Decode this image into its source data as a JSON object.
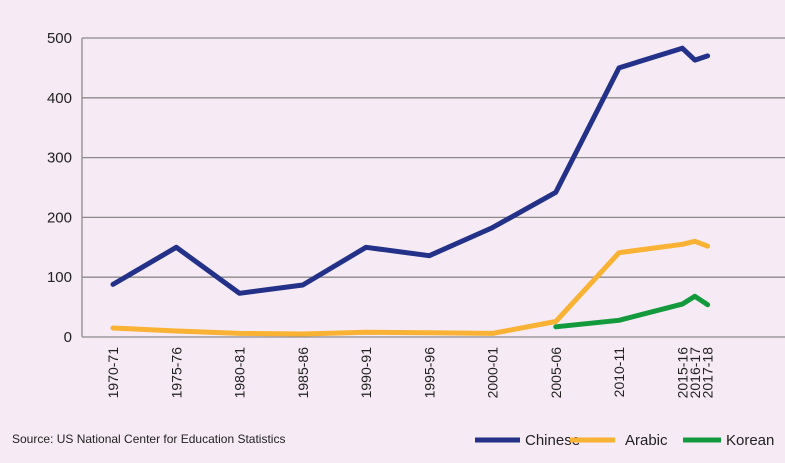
{
  "chart_data": {
    "type": "line",
    "title": "",
    "xlabel": "",
    "ylabel": "",
    "ylim": [
      0,
      500
    ],
    "yticks": [
      0,
      100,
      200,
      300,
      400,
      500
    ],
    "grid": true,
    "legend_placement": "bottom-right",
    "categories": [
      "1970-71",
      "1975-76",
      "1980-81",
      "1985-86",
      "1990-91",
      "1995-96",
      "2000-01",
      "2005-06",
      "2010-11",
      "2015-16",
      "2016-17",
      "2017-18"
    ],
    "series": [
      {
        "name": "Chinese",
        "color": "#233288",
        "values": [
          88,
          150,
          73,
          87,
          150,
          136,
          183,
          242,
          450,
          483,
          463,
          470
        ]
      },
      {
        "name": "Arabic",
        "color": "#f9b233",
        "values": [
          15,
          10,
          6,
          5,
          8,
          7,
          6,
          26,
          141,
          155,
          160,
          152
        ]
      },
      {
        "name": "Korean",
        "color": "#129a3c",
        "values": [
          null,
          null,
          null,
          null,
          null,
          null,
          null,
          17,
          28,
          55,
          68,
          54
        ]
      }
    ]
  },
  "source": "Source: US National Center for Education Statistics"
}
